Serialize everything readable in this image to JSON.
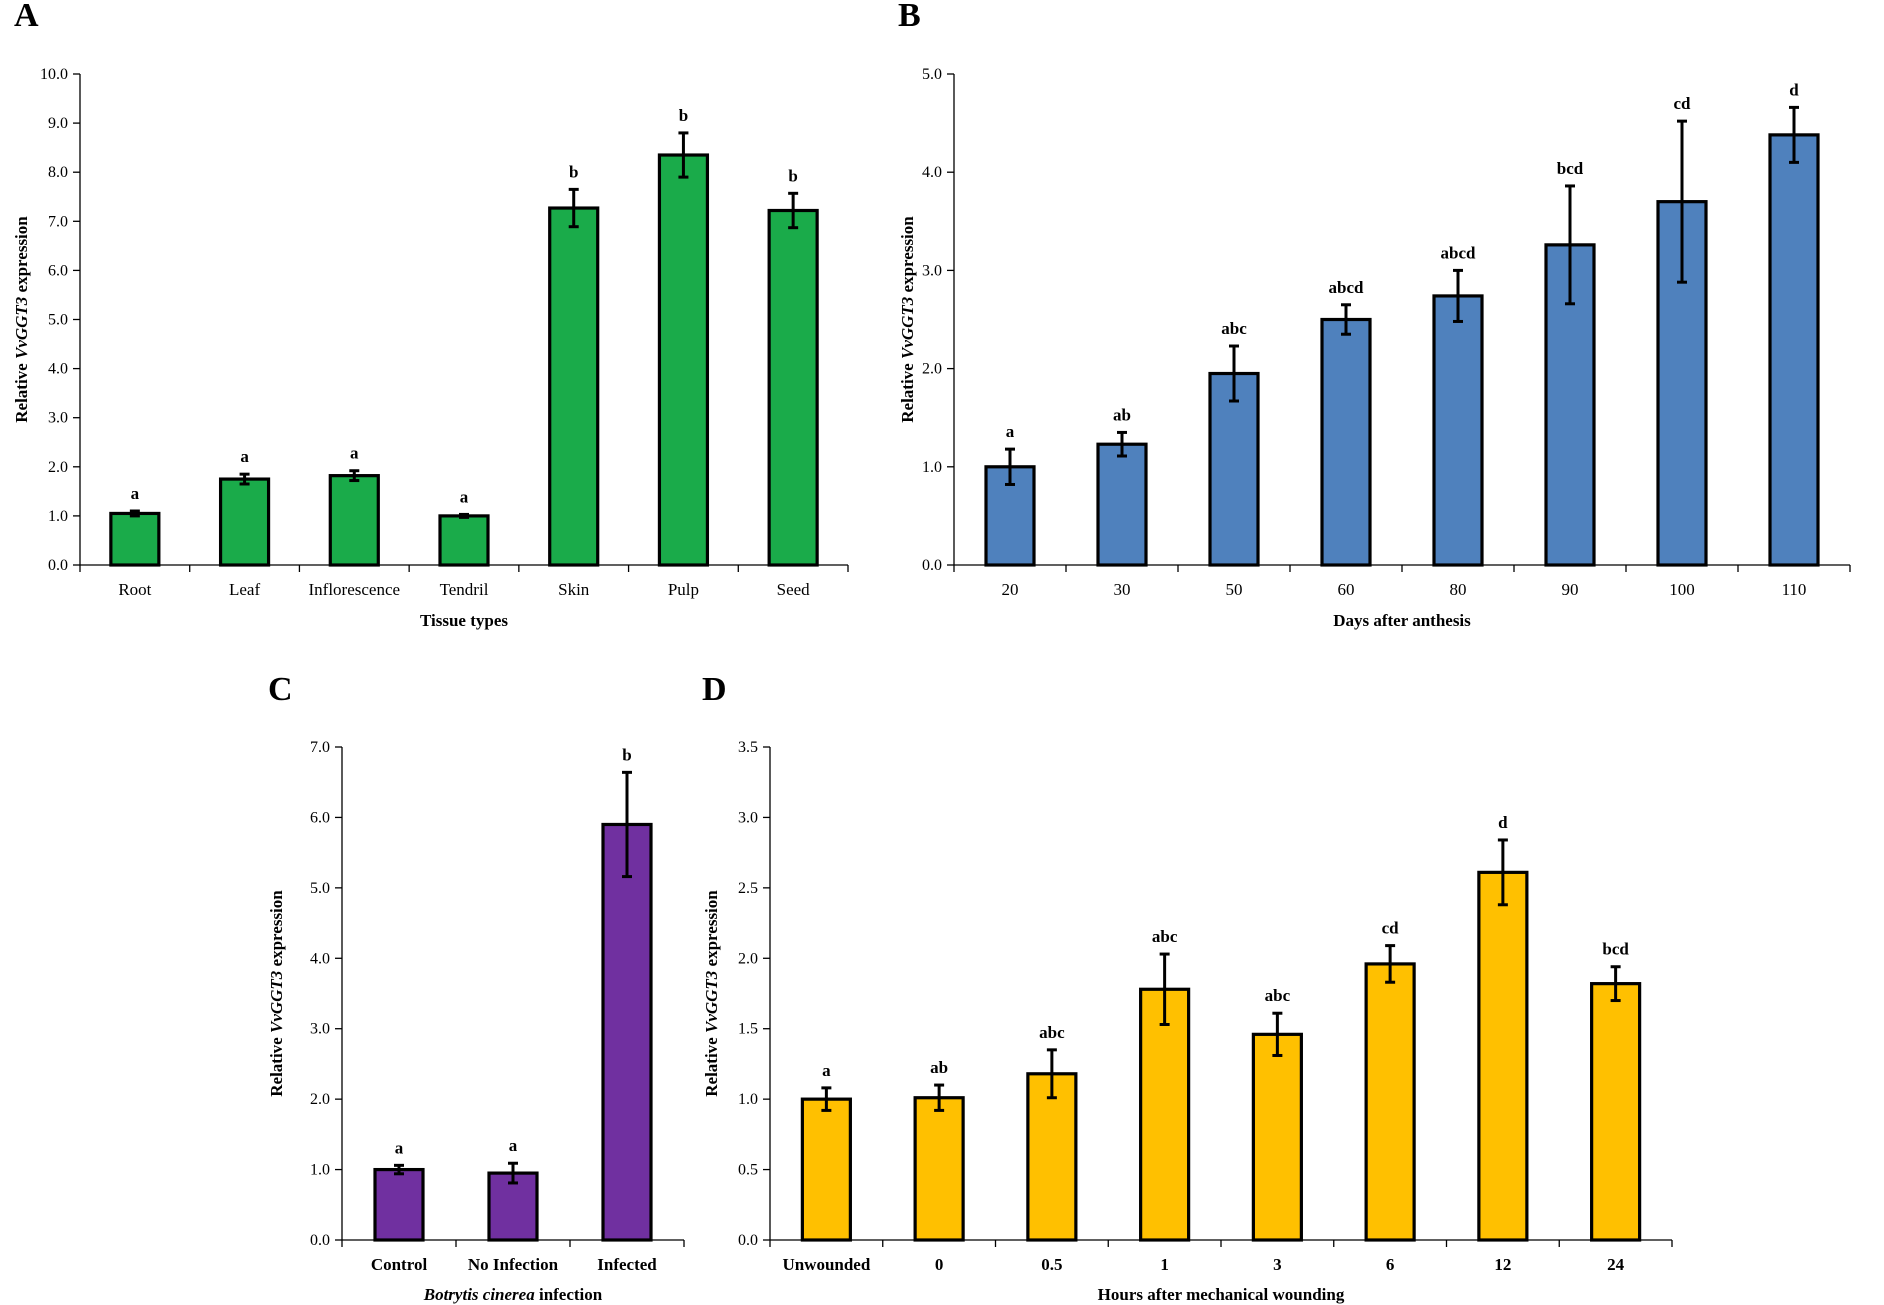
{
  "chart_data": [
    {
      "panel": "A",
      "type": "bar",
      "color": "#1aab4a",
      "categories": [
        "Root",
        "Leaf",
        "Inflorescence",
        "Tendril",
        "Skin",
        "Pulp",
        "Seed"
      ],
      "values": [
        1.05,
        1.75,
        1.82,
        1.0,
        7.27,
        8.35,
        7.22
      ],
      "errors": [
        0.05,
        0.1,
        0.1,
        0.03,
        0.38,
        0.45,
        0.35
      ],
      "significance": [
        "a",
        "a",
        "a",
        "a",
        "b",
        "b",
        "b"
      ],
      "xlabel": "Tissue types",
      "ylabel": {
        "prefix": "Relative ",
        "gene": "VvGGT3",
        "suffix": " expression"
      },
      "ylim": [
        0,
        10
      ],
      "ytick_step": 1,
      "yticks": [
        "0.0",
        "1.0",
        "2.0",
        "3.0",
        "4.0",
        "5.0",
        "6.0",
        "7.0",
        "8.0",
        "9.0",
        "10.0"
      ]
    },
    {
      "panel": "B",
      "type": "bar",
      "color": "#4f81bd",
      "categories": [
        "20",
        "30",
        "50",
        "60",
        "80",
        "90",
        "100",
        "110"
      ],
      "values": [
        1.0,
        1.23,
        1.95,
        2.5,
        2.74,
        3.26,
        3.7,
        4.38
      ],
      "errors": [
        0.18,
        0.12,
        0.28,
        0.15,
        0.26,
        0.6,
        0.82,
        0.28
      ],
      "significance": [
        "a",
        "ab",
        "abc",
        "abcd",
        "abcd",
        "bcd",
        "cd",
        "d"
      ],
      "xlabel": "Days after anthesis",
      "ylabel": {
        "prefix": "Relative ",
        "gene": "VvGGT3",
        "suffix": " expression"
      },
      "ylim": [
        0,
        5
      ],
      "ytick_step": 1,
      "yticks": [
        "0.0",
        "1.0",
        "2.0",
        "3.0",
        "4.0",
        "5.0"
      ]
    },
    {
      "panel": "C",
      "type": "bar",
      "color": "#7030a0",
      "categories": [
        "Control",
        "No Infection",
        "Infected"
      ],
      "values": [
        1.0,
        0.95,
        5.9
      ],
      "errors": [
        0.06,
        0.14,
        0.74
      ],
      "significance": [
        "a",
        "a",
        "b"
      ],
      "xlabel": {
        "italic": "Botrytis cinerea",
        "rest": " infection"
      },
      "ylabel": {
        "prefix": "Relative ",
        "gene": "VvGGT3",
        "suffix": " expression"
      },
      "ylim": [
        0,
        7
      ],
      "ytick_step": 1,
      "yticks": [
        "0.0",
        "1.0",
        "2.0",
        "3.0",
        "4.0",
        "5.0",
        "6.0",
        "7.0"
      ]
    },
    {
      "panel": "D",
      "type": "bar",
      "color": "#ffc000",
      "categories": [
        "Unwounded",
        "0",
        "0.5",
        "1",
        "3",
        "6",
        "12",
        "24"
      ],
      "values": [
        1.0,
        1.01,
        1.18,
        1.78,
        1.46,
        1.96,
        2.61,
        1.82
      ],
      "errors": [
        0.08,
        0.09,
        0.17,
        0.25,
        0.15,
        0.13,
        0.23,
        0.12
      ],
      "significance": [
        "a",
        "ab",
        "abc",
        "abc",
        "abc",
        "cd",
        "d",
        "bcd"
      ],
      "xlabel": "Hours after mechanical wounding",
      "ylabel": {
        "prefix": "Relative ",
        "gene": "VvGGT3",
        "suffix": " expression"
      },
      "ylim": [
        0,
        3.5
      ],
      "ytick_step": 0.5,
      "yticks": [
        "0.0",
        "0.5",
        "1.0",
        "1.5",
        "2.0",
        "2.5",
        "3.0",
        "3.5"
      ]
    }
  ]
}
